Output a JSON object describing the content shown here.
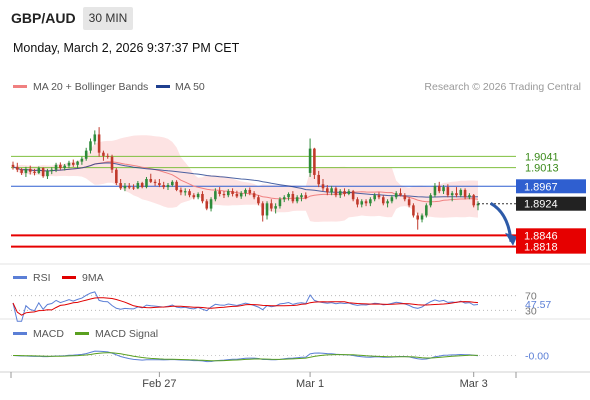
{
  "header": {
    "pair": "GBP/AUD",
    "timeframe": "30 MIN",
    "datetime": "Monday, March 2, 2026 9:37:37 PM CET"
  },
  "legend": {
    "ma20": "MA 20 + Bollinger Bands",
    "ma50": "MA 50",
    "source": "Research © 2026 Trading Central",
    "rsi": "RSI",
    "rsi_ma": "9MA",
    "macd": "MACD",
    "macd_signal": "MACD Signal"
  },
  "colors": {
    "up": "#2e8b3a",
    "down": "#c0392b",
    "ma20": "#f08080",
    "band_fill": "#fde3e3",
    "ma50": "#1f3f8f",
    "green_level": "#7fbf3f",
    "blue_level": "#2f5fd0",
    "red_level": "#e60000",
    "rsi": "#5b7fd6",
    "rsi_ma": "#e00000",
    "macd": "#5b7fd6",
    "macd_signal": "#5aa020",
    "arrow": "#2d5aa8"
  },
  "chart_data": [
    {
      "type": "candlestick",
      "name": "price",
      "ylim": [
        1.879,
        1.918
      ],
      "current_price": 1.8924,
      "levels": [
        {
          "value": 1.9041,
          "label": "1.9041",
          "kind": "resistance"
        },
        {
          "value": 1.9013,
          "label": "1.9013",
          "kind": "resistance"
        },
        {
          "value": 1.8967,
          "label": "1.8967",
          "kind": "pivot"
        },
        {
          "value": 1.8846,
          "label": "1.8846",
          "kind": "support"
        },
        {
          "value": 1.8818,
          "label": "1.8818",
          "kind": "support"
        }
      ],
      "x_ticks": [
        {
          "index": 34,
          "label": "Feb 27"
        },
        {
          "index": 69,
          "label": "Mar 1"
        },
        {
          "index": 107,
          "label": "Mar 3"
        }
      ],
      "forecast": {
        "from_index": 110,
        "to_value": 1.883,
        "direction": "down"
      },
      "candles": [
        [
          1.902,
          1.9028,
          1.9008,
          1.9015
        ],
        [
          1.9015,
          1.9025,
          1.9002,
          1.9008
        ],
        [
          1.9008,
          1.9012,
          1.8995,
          1.9
        ],
        [
          1.9,
          1.9015,
          1.899,
          1.901
        ],
        [
          1.901,
          1.9018,
          1.8996,
          1.9003
        ],
        [
          1.9003,
          1.901,
          1.8994,
          1.9
        ],
        [
          1.9,
          1.9016,
          1.8997,
          1.9012
        ],
        [
          1.9012,
          1.9014,
          1.8988,
          1.8992
        ],
        [
          1.8992,
          1.901,
          1.8985,
          1.9005
        ],
        [
          1.9005,
          1.9014,
          1.8997,
          1.9008
        ],
        [
          1.9008,
          1.9025,
          1.9002,
          1.902
        ],
        [
          1.902,
          1.9026,
          1.9008,
          1.9012
        ],
        [
          1.9012,
          1.9022,
          1.9006,
          1.9018
        ],
        [
          1.9018,
          1.903,
          1.9012,
          1.9025
        ],
        [
          1.9025,
          1.9033,
          1.9015,
          1.902
        ],
        [
          1.902,
          1.903,
          1.9012,
          1.9028
        ],
        [
          1.9028,
          1.904,
          1.902,
          1.9035
        ],
        [
          1.9035,
          1.9062,
          1.903,
          1.9055
        ],
        [
          1.9055,
          1.9085,
          1.9048,
          1.9078
        ],
        [
          1.9078,
          1.9105,
          1.907,
          1.9095
        ],
        [
          1.9095,
          1.9113,
          1.904,
          1.905
        ],
        [
          1.905,
          1.9055,
          1.903,
          1.9042
        ],
        [
          1.9042,
          1.9048,
          1.9035,
          1.904
        ],
        [
          1.904,
          1.9045,
          1.9,
          1.9008
        ],
        [
          1.9008,
          1.9012,
          1.897,
          1.8975
        ],
        [
          1.8975,
          1.8985,
          1.8958,
          1.8962
        ],
        [
          1.8962,
          1.8975,
          1.8955,
          1.8968
        ],
        [
          1.8968,
          1.8975,
          1.896,
          1.8964
        ],
        [
          1.8964,
          1.8972,
          1.8958,
          1.8962
        ],
        [
          1.8962,
          1.898,
          1.896,
          1.8975
        ],
        [
          1.8975,
          1.8978,
          1.8962,
          1.8965
        ],
        [
          1.8965,
          1.899,
          1.8962,
          1.8985
        ],
        [
          1.8985,
          1.8998,
          1.8975,
          1.8978
        ],
        [
          1.8978,
          1.8984,
          1.8968,
          1.8975
        ],
        [
          1.8975,
          1.8985,
          1.8965,
          1.897
        ],
        [
          1.897,
          1.8978,
          1.896,
          1.8965
        ],
        [
          1.8965,
          1.8975,
          1.8958,
          1.897
        ],
        [
          1.897,
          1.8982,
          1.8966,
          1.8978
        ],
        [
          1.8978,
          1.8982,
          1.8955,
          1.8958
        ],
        [
          1.8958,
          1.8964,
          1.8945,
          1.8952
        ],
        [
          1.8952,
          1.8962,
          1.8944,
          1.8955
        ],
        [
          1.8955,
          1.896,
          1.894,
          1.8945
        ],
        [
          1.8945,
          1.895,
          1.8935,
          1.894
        ],
        [
          1.894,
          1.8952,
          1.8935,
          1.8948
        ],
        [
          1.8948,
          1.8955,
          1.8925,
          1.893
        ],
        [
          1.893,
          1.8935,
          1.8908,
          1.8912
        ],
        [
          1.8912,
          1.894,
          1.8905,
          1.8935
        ],
        [
          1.8935,
          1.8962,
          1.893,
          1.8955
        ],
        [
          1.8955,
          1.8965,
          1.8942,
          1.8948
        ],
        [
          1.8948,
          1.8955,
          1.8938,
          1.8945
        ],
        [
          1.8945,
          1.896,
          1.894,
          1.8955
        ],
        [
          1.8955,
          1.8962,
          1.8942,
          1.8948
        ],
        [
          1.8948,
          1.8956,
          1.8938,
          1.8942
        ],
        [
          1.8942,
          1.8955,
          1.8936,
          1.895
        ],
        [
          1.895,
          1.8962,
          1.8942,
          1.8958
        ],
        [
          1.8958,
          1.8964,
          1.8945,
          1.895
        ],
        [
          1.895,
          1.8955,
          1.8935,
          1.894
        ],
        [
          1.894,
          1.8945,
          1.892,
          1.8925
        ],
        [
          1.8925,
          1.893,
          1.888,
          1.8895
        ],
        [
          1.8895,
          1.893,
          1.8885,
          1.8925
        ],
        [
          1.8925,
          1.8935,
          1.8905,
          1.8912
        ],
        [
          1.8912,
          1.8925,
          1.89,
          1.8918
        ],
        [
          1.8918,
          1.894,
          1.8912,
          1.8935
        ],
        [
          1.8935,
          1.8945,
          1.8928,
          1.894
        ],
        [
          1.894,
          1.8952,
          1.8932,
          1.8948
        ],
        [
          1.8948,
          1.8955,
          1.8925,
          1.893
        ],
        [
          1.893,
          1.8945,
          1.8925,
          1.894
        ],
        [
          1.894,
          1.895,
          1.893,
          1.8945
        ],
        [
          1.8945,
          1.8952,
          1.8935,
          1.8938
        ],
        [
          1.9,
          1.9085,
          1.899,
          1.906
        ],
        [
          1.906,
          1.9062,
          1.8985,
          1.8995
        ],
        [
          1.8995,
          1.9005,
          1.8965,
          1.8972
        ],
        [
          1.8972,
          1.8985,
          1.8955,
          1.8962
        ],
        [
          1.8962,
          1.897,
          1.8945,
          1.8952
        ],
        [
          1.8952,
          1.8968,
          1.8945,
          1.8962
        ],
        [
          1.8962,
          1.8966,
          1.894,
          1.8945
        ],
        [
          1.8945,
          1.896,
          1.8938,
          1.8955
        ],
        [
          1.8955,
          1.8962,
          1.8942,
          1.8948
        ],
        [
          1.8948,
          1.896,
          1.8945,
          1.8955
        ],
        [
          1.8955,
          1.8958,
          1.893,
          1.8935
        ],
        [
          1.8935,
          1.894,
          1.8915,
          1.8922
        ],
        [
          1.8922,
          1.8935,
          1.8915,
          1.893
        ],
        [
          1.893,
          1.8935,
          1.8918,
          1.8925
        ],
        [
          1.8925,
          1.894,
          1.8918,
          1.8935
        ],
        [
          1.8935,
          1.895,
          1.893,
          1.8945
        ],
        [
          1.8945,
          1.8952,
          1.8935,
          1.894
        ],
        [
          1.894,
          1.8945,
          1.892,
          1.8925
        ],
        [
          1.8925,
          1.8935,
          1.8915,
          1.893
        ],
        [
          1.893,
          1.8945,
          1.8925,
          1.894
        ],
        [
          1.894,
          1.8955,
          1.8935,
          1.895
        ],
        [
          1.895,
          1.8962,
          1.8942,
          1.8945
        ],
        [
          1.8945,
          1.895,
          1.893,
          1.8935
        ],
        [
          1.8935,
          1.894,
          1.8915,
          1.892
        ],
        [
          1.892,
          1.8925,
          1.889,
          1.8895
        ],
        [
          1.8895,
          1.8902,
          1.886,
          1.8885
        ],
        [
          1.8885,
          1.89,
          1.8878,
          1.8895
        ],
        [
          1.8895,
          1.8925,
          1.889,
          1.892
        ],
        [
          1.892,
          1.895,
          1.8915,
          1.8945
        ],
        [
          1.8945,
          1.8975,
          1.894,
          1.8968
        ],
        [
          1.8968,
          1.8978,
          1.895,
          1.8955
        ],
        [
          1.8955,
          1.897,
          1.8948,
          1.8965
        ],
        [
          1.8965,
          1.8972,
          1.894,
          1.8945
        ],
        [
          1.8945,
          1.8955,
          1.893,
          1.895
        ],
        [
          1.895,
          1.8965,
          1.894,
          1.8945
        ],
        [
          1.8945,
          1.8962,
          1.894,
          1.8958
        ],
        [
          1.8958,
          1.8962,
          1.8935,
          1.894
        ],
        [
          1.894,
          1.895,
          1.8935,
          1.8945
        ],
        [
          1.8945,
          1.8948,
          1.8915,
          1.892
        ],
        [
          1.892,
          1.893,
          1.8908,
          1.8924
        ]
      ]
    },
    {
      "type": "line",
      "name": "RSI",
      "ylim": [
        20,
        80
      ],
      "levels": [
        {
          "value": 70,
          "label": "70"
        },
        {
          "value": 30,
          "label": "30"
        }
      ],
      "last_value": 47.57,
      "last_label": "47.57"
    },
    {
      "type": "line",
      "name": "MACD",
      "ylim": [
        -0.004,
        0.004
      ],
      "last_value": -0.0,
      "last_label": "-0.00"
    }
  ]
}
